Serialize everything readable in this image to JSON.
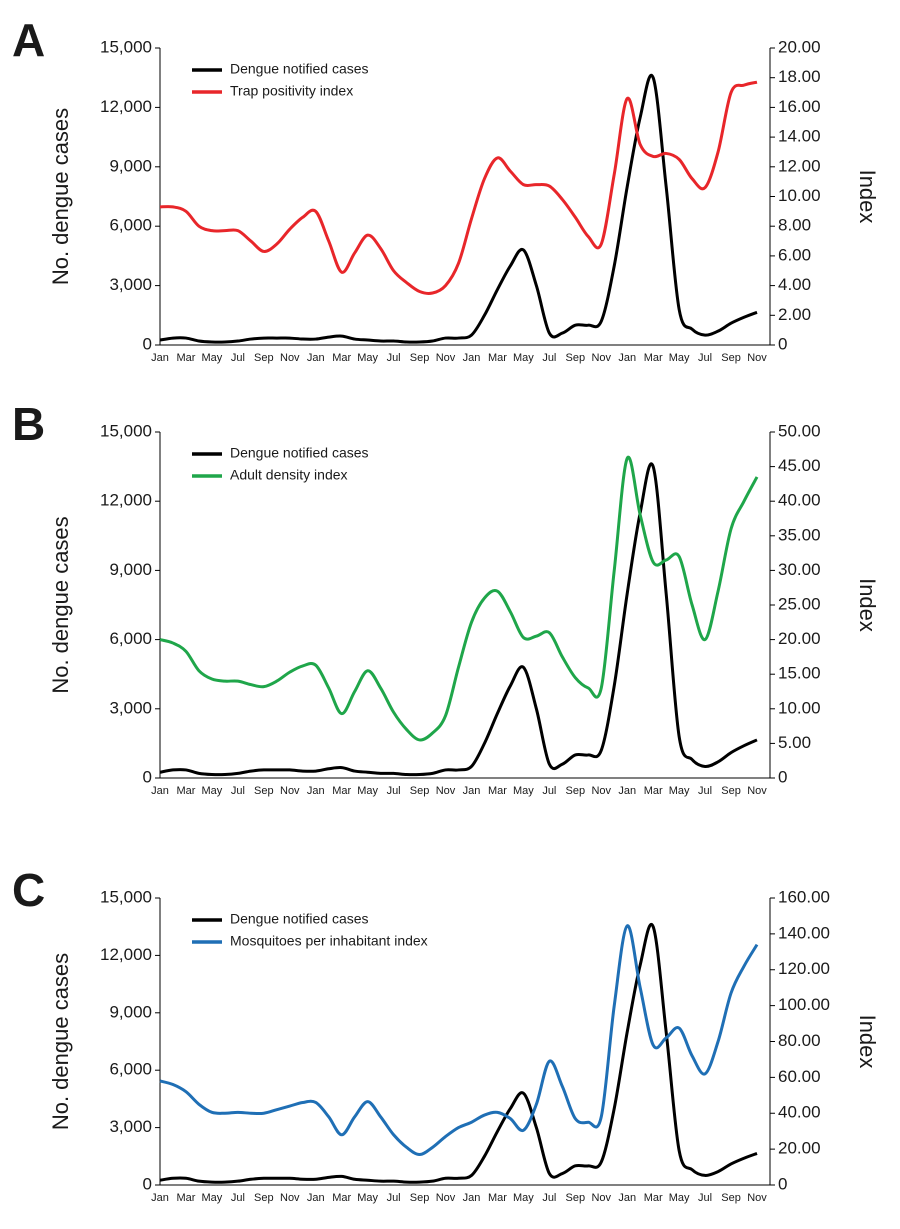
{
  "chart_data": [
    {
      "type": "line",
      "panel": "A",
      "ylabel": "No. dengue cases",
      "y2label": "Index",
      "categories": [
        "Jan",
        null,
        "Mar",
        null,
        "May",
        null,
        "Jul",
        null,
        "Sep",
        null,
        "Nov",
        null,
        "Jan",
        null,
        "Mar",
        null,
        "May",
        null,
        "Jul",
        null,
        "Sep",
        null,
        "Nov",
        null,
        "Jan",
        null,
        "Mar",
        null,
        "May",
        null,
        "Jul",
        null,
        "Sep",
        null,
        "Nov",
        null,
        "Jan",
        null,
        "Mar",
        null,
        "May",
        null,
        "Jul",
        null,
        "Sep",
        null,
        "Nov"
      ],
      "ylim": [
        0,
        15000
      ],
      "yticks": [
        0,
        {
          "value": 3000,
          "label": "3,000"
        },
        {
          "value": 6000,
          "label": "6,000"
        },
        {
          "value": 9000,
          "label": "9,000"
        },
        {
          "value": 12000,
          "label": "12,000"
        },
        {
          "value": 15000,
          "label": "15,000"
        }
      ],
      "y2lim": [
        0,
        20
      ],
      "y2ticks": [
        0,
        {
          "value": 2,
          "label": "2.00"
        },
        {
          "value": 4,
          "label": "4.00"
        },
        {
          "value": 6,
          "label": "6.00"
        },
        {
          "value": 8,
          "label": "8.00"
        },
        {
          "value": 10,
          "label": "10.00"
        },
        {
          "value": 12,
          "label": "12.00"
        },
        {
          "value": 14,
          "label": "14.00"
        },
        {
          "value": 16,
          "label": "16.00"
        },
        {
          "value": 18,
          "label": "18.00"
        },
        {
          "value": 20,
          "label": "20.00"
        }
      ],
      "series": [
        {
          "name": "Dengue notified cases",
          "color": "#000000",
          "values": [
            250,
            350,
            350,
            200,
            150,
            150,
            200,
            300,
            350,
            350,
            350,
            300,
            300,
            400,
            450,
            300,
            250,
            200,
            200,
            150,
            150,
            200,
            350,
            350,
            500,
            1500,
            2800,
            4000,
            4800,
            3000,
            600,
            600,
            1000,
            1000,
            1200,
            4000,
            8000,
            11500,
            13500,
            8000,
            1800,
            800,
            500,
            700,
            1100,
            1400,
            1650
          ]
        },
        {
          "name": "Trap positivity index",
          "color": "#e8262a",
          "axis": "y2",
          "values": [
            9.3,
            9.3,
            9.0,
            8.0,
            7.7,
            7.7,
            7.7,
            7.0,
            6.3,
            6.8,
            7.8,
            8.6,
            9.0,
            7.0,
            4.9,
            6.2,
            7.4,
            6.5,
            5.0,
            4.2,
            3.6,
            3.5,
            4.0,
            5.5,
            8.5,
            11.2,
            12.6,
            11.7,
            10.8,
            10.8,
            10.7,
            9.8,
            8.6,
            7.3,
            6.8,
            11.5,
            16.6,
            13.5,
            12.7,
            12.9,
            12.5,
            11.2,
            10.6,
            13.0,
            17.0,
            17.5,
            17.7
          ]
        }
      ]
    },
    {
      "type": "line",
      "panel": "B",
      "ylabel": "No. dengue cases",
      "y2label": "Index",
      "categories": [
        "Jan",
        null,
        "Mar",
        null,
        "May",
        null,
        "Jul",
        null,
        "Sep",
        null,
        "Nov",
        null,
        "Jan",
        null,
        "Mar",
        null,
        "May",
        null,
        "Jul",
        null,
        "Sep",
        null,
        "Nov",
        null,
        "Jan",
        null,
        "Mar",
        null,
        "May",
        null,
        "Jul",
        null,
        "Sep",
        null,
        "Nov",
        null,
        "Jan",
        null,
        "Mar",
        null,
        "May",
        null,
        "Jul",
        null,
        "Sep",
        null,
        "Nov"
      ],
      "ylim": [
        0,
        15000
      ],
      "yticks": [
        0,
        {
          "value": 3000,
          "label": "3,000"
        },
        {
          "value": 6000,
          "label": "6,000"
        },
        {
          "value": 9000,
          "label": "9,000"
        },
        {
          "value": 12000,
          "label": "12,000"
        },
        {
          "value": 15000,
          "label": "15,000"
        }
      ],
      "y2lim": [
        0,
        50
      ],
      "y2ticks": [
        0,
        {
          "value": 5,
          "label": "5.00"
        },
        {
          "value": 10,
          "label": "10.00"
        },
        {
          "value": 15,
          "label": "15.00"
        },
        {
          "value": 20,
          "label": "20.00"
        },
        {
          "value": 25,
          "label": "25.00"
        },
        {
          "value": 30,
          "label": "30.00"
        },
        {
          "value": 35,
          "label": "35.00"
        },
        {
          "value": 40,
          "label": "40.00"
        },
        {
          "value": 45,
          "label": "45.00"
        },
        {
          "value": 50,
          "label": "50.00"
        }
      ],
      "series": [
        {
          "name": "Dengue notified cases",
          "color": "#000000",
          "values": [
            250,
            350,
            350,
            200,
            150,
            150,
            200,
            300,
            350,
            350,
            350,
            300,
            300,
            400,
            450,
            300,
            250,
            200,
            200,
            150,
            150,
            200,
            350,
            350,
            500,
            1500,
            2800,
            4000,
            4800,
            3000,
            600,
            600,
            1000,
            1000,
            1200,
            4000,
            8000,
            11500,
            13500,
            8000,
            1800,
            800,
            500,
            700,
            1100,
            1400,
            1650
          ]
        },
        {
          "name": "Adult density index",
          "color": "#1fa64a",
          "axis": "y2",
          "values": [
            20,
            19.5,
            18.3,
            15.5,
            14.3,
            14,
            14,
            13.5,
            13.2,
            14,
            15.3,
            16.2,
            16.3,
            13,
            9.3,
            12.5,
            15.5,
            13,
            9.5,
            7,
            5.5,
            6.5,
            9,
            16,
            22.5,
            26,
            27,
            24,
            20.3,
            20.5,
            21,
            17.5,
            14.5,
            13,
            13,
            30,
            46.2,
            38,
            31.2,
            31.5,
            32,
            25,
            20,
            27,
            36,
            40,
            43.5
          ]
        }
      ]
    },
    {
      "type": "line",
      "panel": "C",
      "ylabel": "No. dengue cases",
      "y2label": "Index",
      "categories": [
        "Jan",
        null,
        "Mar",
        null,
        "May",
        null,
        "Jul",
        null,
        "Sep",
        null,
        "Nov",
        null,
        "Jan",
        null,
        "Mar",
        null,
        "May",
        null,
        "Jul",
        null,
        "Sep",
        null,
        "Nov",
        null,
        "Jan",
        null,
        "Mar",
        null,
        "May",
        null,
        "Jul",
        null,
        "Sep",
        null,
        "Nov",
        null,
        "Jan",
        null,
        "Mar",
        null,
        "May",
        null,
        "Jul",
        null,
        "Sep",
        null,
        "Nov"
      ],
      "ylim": [
        0,
        15000
      ],
      "yticks": [
        0,
        {
          "value": 3000,
          "label": "3,000"
        },
        {
          "value": 6000,
          "label": "6,000"
        },
        {
          "value": 9000,
          "label": "9,000"
        },
        {
          "value": 12000,
          "label": "12,000"
        },
        {
          "value": 15000,
          "label": "15,000"
        }
      ],
      "y2lim": [
        0,
        160
      ],
      "y2ticks": [
        0,
        {
          "value": 20,
          "label": "20.00"
        },
        {
          "value": 40,
          "label": "40.00"
        },
        {
          "value": 60,
          "label": "60.00"
        },
        {
          "value": 80,
          "label": "80.00"
        },
        {
          "value": 100,
          "label": "100.00"
        },
        {
          "value": 120,
          "label": "120.00"
        },
        {
          "value": 140,
          "label": "140.00"
        },
        {
          "value": 160,
          "label": "160.00"
        }
      ],
      "series": [
        {
          "name": "Dengue notified cases",
          "color": "#000000",
          "values": [
            250,
            350,
            350,
            200,
            150,
            150,
            200,
            300,
            350,
            350,
            350,
            300,
            300,
            400,
            450,
            300,
            250,
            200,
            200,
            150,
            150,
            200,
            350,
            350,
            500,
            1500,
            2800,
            4000,
            4800,
            3000,
            600,
            600,
            1000,
            1000,
            1200,
            4000,
            8000,
            11500,
            13500,
            8000,
            1800,
            800,
            500,
            700,
            1100,
            1400,
            1650
          ]
        },
        {
          "name": "Mosquitoes per inhabitant index",
          "color": "#1f6fb5",
          "axis": "y2",
          "values": [
            58,
            56,
            52,
            45,
            40.5,
            40,
            40.5,
            40,
            40,
            42,
            44,
            46,
            46,
            38,
            28,
            38,
            46.5,
            38,
            28,
            21,
            17,
            21,
            27,
            32,
            35,
            39,
            40.5,
            37,
            30.5,
            45,
            69,
            55,
            37,
            35,
            38,
            100,
            144.5,
            110,
            78,
            82,
            87.5,
            72,
            62,
            80,
            107,
            122,
            134
          ]
        }
      ]
    }
  ]
}
